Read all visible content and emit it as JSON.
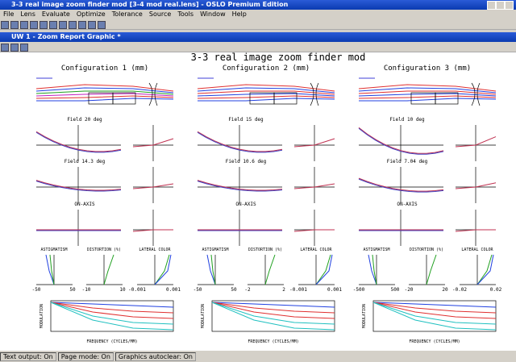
{
  "window": {
    "title": "3-3 real image zoom finder mod [3-4 mod real.lens] - OSLO Premium Edition",
    "menu": [
      "File",
      "Lens",
      "Evaluate",
      "Optimize",
      "Tolerance",
      "Source",
      "Tools",
      "Window",
      "Help"
    ]
  },
  "subwindow": {
    "title": "UW 1 - Zoom Report Graphic *"
  },
  "report": {
    "title": "3-3 real image zoom finder mod",
    "panels": {
      "astigmatism": "ASTIGMATISM",
      "distortion": "DISTORTION (%)",
      "lateral_color": "LATERAL COLOR",
      "modulation": "MODULATION",
      "frequency": "FREQUENCY (CYCLES/MM)"
    },
    "configs": [
      {
        "label": "Configuration 1 (mm)",
        "fields": [
          "Field 20 deg",
          "Field 14.3 deg",
          "ON-AXIS"
        ],
        "astig_ticks": [
          "-50",
          "50"
        ],
        "distortion_ticks": [
          "-10",
          "10"
        ],
        "lateral_ticks": [
          "-0.001",
          "0.001"
        ]
      },
      {
        "label": "Configuration 2 (mm)",
        "fields": [
          "Field 15 deg",
          "Field 10.6 deg",
          "ON-AXIS"
        ],
        "astig_ticks": [
          "-50",
          "50"
        ],
        "distortion_ticks": [
          "-2",
          "2"
        ],
        "lateral_ticks": [
          "-0.001",
          "0.001"
        ]
      },
      {
        "label": "Configuration 3 (mm)",
        "fields": [
          "Field 10 deg",
          "Field 7.04 deg",
          "ON-AXIS"
        ],
        "astig_ticks": [
          "-500",
          "500"
        ],
        "distortion_ticks": [
          "-20",
          "20"
        ],
        "lateral_ticks": [
          "-0.02",
          "0.02"
        ]
      }
    ]
  },
  "status": [
    "Text output: On",
    "Page mode: On",
    "Graphics autoclear: On"
  ]
}
